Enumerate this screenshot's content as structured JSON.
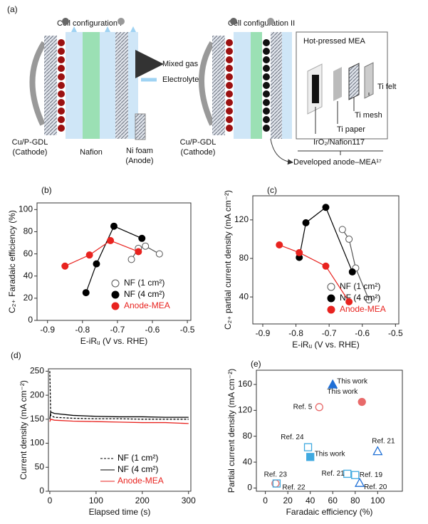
{
  "diagram": {
    "panel": "(a)",
    "config1": "Cell configuration I",
    "config2": "Cell configuration II",
    "mixed_gas": "Mixed gas",
    "electrolyte": "Electrolyte",
    "cathode1": [
      "Cu/P-GDL",
      "(Cathode)"
    ],
    "nafion": "Nafion",
    "anode1": [
      "Ni foam",
      "(Anode)"
    ],
    "cathode2": [
      "Cu/P-GDL",
      "(Cathode)"
    ],
    "mea": "Hot-pressed MEA",
    "ti_felt": "Ti felt",
    "ti_mesh": "Ti mesh",
    "ti_paper": "Ti paper",
    "iro2": "IrO₂/Nafion117",
    "developed": "Developed anode–MEA¹⁷"
  },
  "chart_data": [
    {
      "type": "line",
      "panel": "(b)",
      "ylabel": "C₂₊ Faradaic efficiency (%)",
      "xlabel": "E-iRᵤ (V vs. RHE)",
      "xlim": [
        -0.93,
        -0.49
      ],
      "xticks": [
        -0.9,
        -0.8,
        -0.7,
        -0.6,
        -0.5
      ],
      "ylim": [
        0,
        106
      ],
      "yticks": [
        0,
        20,
        40,
        60,
        80,
        100
      ],
      "markers": true,
      "legend": "lower right",
      "series": [
        {
          "name": "NF (1 cm²)",
          "color": "#555555",
          "marker_fill": "#ffffff",
          "x": [
            -0.66,
            -0.64,
            -0.62,
            -0.58
          ],
          "values": [
            55,
            65,
            67,
            60
          ]
        },
        {
          "name": "NF (4 cm²)",
          "color": "#000000",
          "marker_fill": "#000000",
          "x": [
            -0.79,
            -0.76,
            -0.71,
            -0.63
          ],
          "values": [
            25,
            51,
            85,
            74
          ]
        },
        {
          "name": "Anode-MEA",
          "color": "#e8231f",
          "marker_fill": "#e8231f",
          "x": [
            -0.85,
            -0.78,
            -0.72,
            -0.64
          ],
          "values": [
            49,
            59,
            72,
            62
          ]
        }
      ]
    },
    {
      "type": "line",
      "panel": "(c)",
      "ylabel": "C₂₊ partial current density (mA cm⁻²)",
      "xlabel": "E-iRᵤ (V vs. RHE)",
      "xlim": [
        -0.93,
        -0.49
      ],
      "xticks": [
        -0.9,
        -0.8,
        -0.7,
        -0.6,
        -0.5
      ],
      "ylim": [
        12,
        145
      ],
      "yticks": [
        40,
        80,
        120
      ],
      "markers": true,
      "legend": "lower right",
      "series": [
        {
          "name": "NF (1 cm²)",
          "color": "#555555",
          "marker_fill": "#ffffff",
          "x": [
            -0.66,
            -0.64,
            -0.62,
            -0.58
          ],
          "values": [
            110,
            100,
            70,
            37
          ]
        },
        {
          "name": "NF (4 cm²)",
          "color": "#000000",
          "marker_fill": "#000000",
          "x": [
            -0.79,
            -0.77,
            -0.71,
            -0.63
          ],
          "values": [
            81,
            117,
            133,
            66
          ]
        },
        {
          "name": "Anode-MEA",
          "color": "#e8231f",
          "marker_fill": "#e8231f",
          "x": [
            -0.85,
            -0.79,
            -0.71,
            -0.64
          ],
          "values": [
            94,
            86,
            72,
            35
          ]
        }
      ]
    },
    {
      "type": "line",
      "panel": "(d)",
      "ylabel": "Current density (mA cm⁻²)",
      "xlabel": "Elapsed time (s)",
      "xlim": [
        -3,
        305
      ],
      "xticks": [
        0,
        100,
        200,
        300
      ],
      "ylim": [
        0,
        255
      ],
      "yticks": [
        0,
        50,
        100,
        150,
        200,
        250
      ],
      "markers": false,
      "legend": "lower right",
      "x": [
        0,
        2,
        10,
        50,
        100,
        150,
        200,
        250,
        300
      ],
      "series": [
        {
          "name": "NF (1 cm²)",
          "color": "#000000",
          "dash": true,
          "values": [
            250,
            158,
            154,
            152,
            151,
            151,
            150,
            150,
            150
          ]
        },
        {
          "name": "NF (4 cm²)",
          "color": "#000000",
          "dash": false,
          "values": [
            150,
            165,
            162,
            158,
            156,
            155,
            155,
            154,
            154
          ]
        },
        {
          "name": "Anode-MEA",
          "color": "#e8231f",
          "dash": false,
          "values": [
            145,
            150,
            148,
            146,
            145,
            144,
            143,
            143,
            141
          ]
        }
      ]
    },
    {
      "type": "scatter",
      "panel": "(e)",
      "ylabel": "Partial current density (mA cm⁻²)",
      "xlabel": "Faradaic efficiency (%)",
      "xlim": [
        -8,
        122
      ],
      "xticks": [
        0,
        20,
        40,
        60,
        80,
        100
      ],
      "ylim": [
        -5,
        182
      ],
      "yticks": [
        0,
        40,
        80,
        120,
        160
      ],
      "points": [
        {
          "label": "This work",
          "x": 60,
          "y": 160,
          "color": "#1f6fd6",
          "marker": "triangle",
          "filled": true
        },
        {
          "label": "This work",
          "x": 86,
          "y": 133,
          "color": "#e86a6a",
          "marker": "circle",
          "filled": true
        },
        {
          "label": "Ref. 5",
          "x": 48,
          "y": 125,
          "color": "#e86a6a",
          "marker": "circle",
          "filled": false
        },
        {
          "label": "Ref. 24",
          "x": 38,
          "y": 63,
          "color": "#3fa9e0",
          "marker": "square",
          "filled": false
        },
        {
          "label": "This work",
          "x": 40,
          "y": 48,
          "color": "#3fa9e0",
          "marker": "square",
          "filled": true
        },
        {
          "label": "Ref. 21",
          "x": 100,
          "y": 57,
          "color": "#1f6fd6",
          "marker": "triangle",
          "filled": false
        },
        {
          "label": "Ref. 21",
          "x": 73,
          "y": 22,
          "color": "#3fa9e0",
          "marker": "square",
          "filled": false
        },
        {
          "label": "Ref. 19",
          "x": 80,
          "y": 20,
          "color": "#3fa9e0",
          "marker": "square",
          "filled": false
        },
        {
          "label": "Ref. 20",
          "x": 84,
          "y": 8,
          "color": "#1f6fd6",
          "marker": "triangle",
          "filled": false
        },
        {
          "label": "Ref. 23",
          "x": 9,
          "y": 7,
          "color": "#e86a6a",
          "marker": "circle",
          "filled": false
        },
        {
          "label": "Ref. 22",
          "x": 10,
          "y": 7,
          "color": "#3fa9e0",
          "marker": "square",
          "filled": false
        }
      ]
    }
  ]
}
